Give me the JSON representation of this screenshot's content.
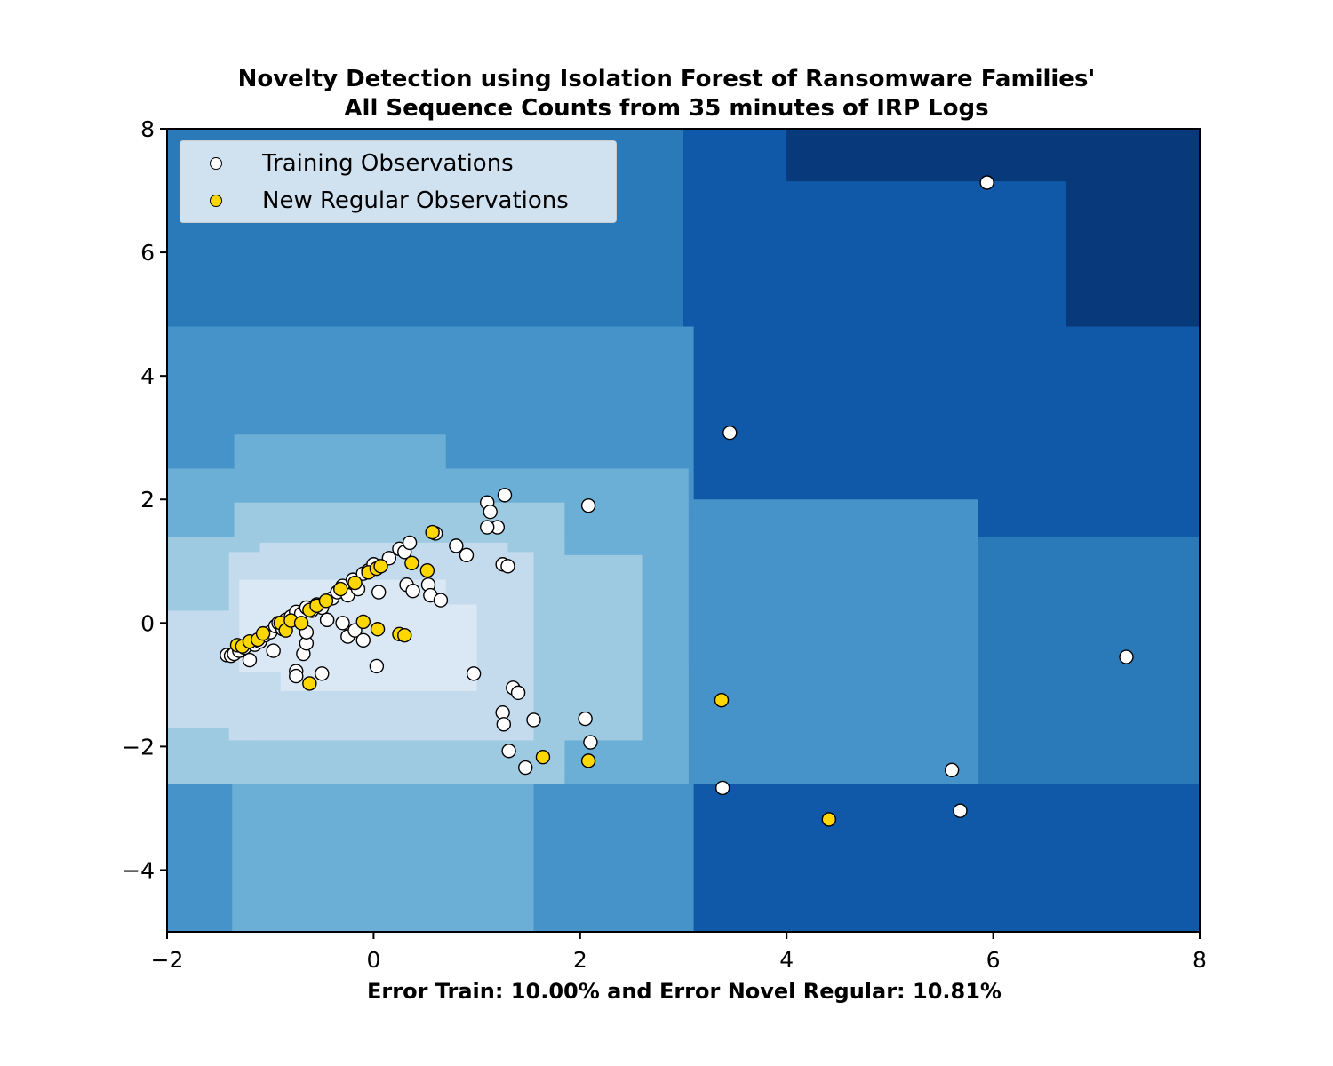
{
  "chart_data": {
    "type": "scatter",
    "title_lines": [
      "Novelty Detection using Isolation Forest of Ransomware Families'",
      "All Sequence Counts from 35 minutes of IRP Logs"
    ],
    "xlabel": "Error Train: 10.00% and Error Novel Regular: 10.81%",
    "ylabel": "",
    "xlim": [
      -2,
      8
    ],
    "ylim": [
      -5,
      8
    ],
    "xticks": [
      -2,
      0,
      2,
      4,
      6,
      8
    ],
    "yticks": [
      -4,
      -2,
      0,
      2,
      4,
      6,
      8
    ],
    "xtick_labels": [
      "−2",
      "0",
      "2",
      "4",
      "6",
      "8"
    ],
    "ytick_labels": [
      "−4",
      "−2",
      "0",
      "2",
      "4",
      "6",
      "8"
    ],
    "legend_placement": "top-left",
    "grid": false,
    "colors": {
      "training_fill": "#ffffff",
      "novel_fill": "#ffd700",
      "marker_edge": "#000000",
      "contour_levels": [
        "#08397a",
        "#1059a8",
        "#2a7aba",
        "#4593c8",
        "#6baed6",
        "#9ecae1",
        "#c4dbee",
        "#dae8f5"
      ]
    },
    "series": [
      {
        "name": "Training Observations",
        "points": [
          [
            -1.42,
            -0.52
          ],
          [
            -1.38,
            -0.53
          ],
          [
            -1.35,
            -0.5
          ],
          [
            -1.3,
            -0.45
          ],
          [
            -1.25,
            -0.4
          ],
          [
            -1.2,
            -0.6
          ],
          [
            -1.15,
            -0.35
          ],
          [
            -1.1,
            -0.3
          ],
          [
            -1.05,
            -0.2
          ],
          [
            -1.0,
            -0.15
          ],
          [
            -0.95,
            -0.05
          ],
          [
            -0.92,
            0.0
          ],
          [
            -0.88,
            -0.1
          ],
          [
            -0.85,
            0.05
          ],
          [
            -0.8,
            0.1
          ],
          [
            -0.75,
            0.18
          ],
          [
            -0.7,
            0.15
          ],
          [
            -0.65,
            0.25
          ],
          [
            -0.6,
            0.2
          ],
          [
            -0.55,
            0.3
          ],
          [
            -0.5,
            0.25
          ],
          [
            -0.45,
            0.05
          ],
          [
            -0.4,
            0.4
          ],
          [
            -0.35,
            0.5
          ],
          [
            -0.3,
            0.6
          ],
          [
            -0.25,
            0.45
          ],
          [
            -0.2,
            0.7
          ],
          [
            -0.15,
            0.55
          ],
          [
            -0.1,
            0.8
          ],
          [
            -0.05,
            0.85
          ],
          [
            0.0,
            0.95
          ],
          [
            0.05,
            0.5
          ],
          [
            0.15,
            1.05
          ],
          [
            0.25,
            1.2
          ],
          [
            0.3,
            1.15
          ],
          [
            0.35,
            1.3
          ],
          [
            0.6,
            1.45
          ],
          [
            0.8,
            1.25
          ],
          [
            0.9,
            1.1
          ],
          [
            1.1,
            1.95
          ],
          [
            1.13,
            1.8
          ],
          [
            1.2,
            1.55
          ],
          [
            1.1,
            1.55
          ],
          [
            1.27,
            2.07
          ],
          [
            2.08,
            1.9
          ],
          [
            1.25,
            0.95
          ],
          [
            1.3,
            0.92
          ],
          [
            0.32,
            0.62
          ],
          [
            0.38,
            0.52
          ],
          [
            0.53,
            0.62
          ],
          [
            0.55,
            0.45
          ],
          [
            0.65,
            0.37
          ],
          [
            -0.97,
            -0.45
          ],
          [
            -0.75,
            -0.78
          ],
          [
            -0.75,
            -0.86
          ],
          [
            -0.68,
            -0.5
          ],
          [
            -0.65,
            -0.33
          ],
          [
            -0.65,
            -0.15
          ],
          [
            -0.5,
            -0.82
          ],
          [
            -0.45,
            0.05
          ],
          [
            -0.3,
            0.0
          ],
          [
            -0.25,
            -0.22
          ],
          [
            -0.18,
            -0.12
          ],
          [
            -0.1,
            -0.28
          ],
          [
            0.03,
            -0.7
          ],
          [
            0.97,
            -0.82
          ],
          [
            1.35,
            -1.05
          ],
          [
            1.4,
            -1.13
          ],
          [
            1.25,
            -1.45
          ],
          [
            1.26,
            -1.64
          ],
          [
            1.55,
            -1.57
          ],
          [
            2.05,
            -1.55
          ],
          [
            2.1,
            -1.93
          ],
          [
            1.31,
            -2.07
          ],
          [
            1.47,
            -2.34
          ],
          [
            3.45,
            3.08
          ],
          [
            3.38,
            -2.67
          ],
          [
            5.6,
            -2.38
          ],
          [
            5.68,
            -3.04
          ],
          [
            5.94,
            7.13
          ],
          [
            7.29,
            -0.55
          ]
        ]
      },
      {
        "name": "New Regular Observations",
        "points": [
          [
            -1.32,
            -0.36
          ],
          [
            -1.27,
            -0.38
          ],
          [
            -1.2,
            -0.3
          ],
          [
            -1.12,
            -0.27
          ],
          [
            -1.07,
            -0.17
          ],
          [
            -0.9,
            0.0
          ],
          [
            -0.85,
            -0.12
          ],
          [
            -0.8,
            0.04
          ],
          [
            -0.7,
            0.0
          ],
          [
            -0.62,
            0.21
          ],
          [
            -0.55,
            0.28
          ],
          [
            -0.46,
            0.36
          ],
          [
            -0.32,
            0.55
          ],
          [
            -0.18,
            0.65
          ],
          [
            -0.05,
            0.82
          ],
          [
            0.03,
            0.88
          ],
          [
            0.07,
            0.92
          ],
          [
            0.37,
            0.97
          ],
          [
            0.52,
            0.85
          ],
          [
            0.57,
            1.47
          ],
          [
            -0.1,
            0.02
          ],
          [
            0.04,
            -0.1
          ],
          [
            0.25,
            -0.18
          ],
          [
            0.3,
            -0.2
          ],
          [
            -0.62,
            -0.98
          ],
          [
            1.64,
            -2.17
          ],
          [
            2.08,
            -2.23
          ],
          [
            3.37,
            -1.25
          ],
          [
            4.41,
            -3.18
          ]
        ]
      }
    ]
  }
}
